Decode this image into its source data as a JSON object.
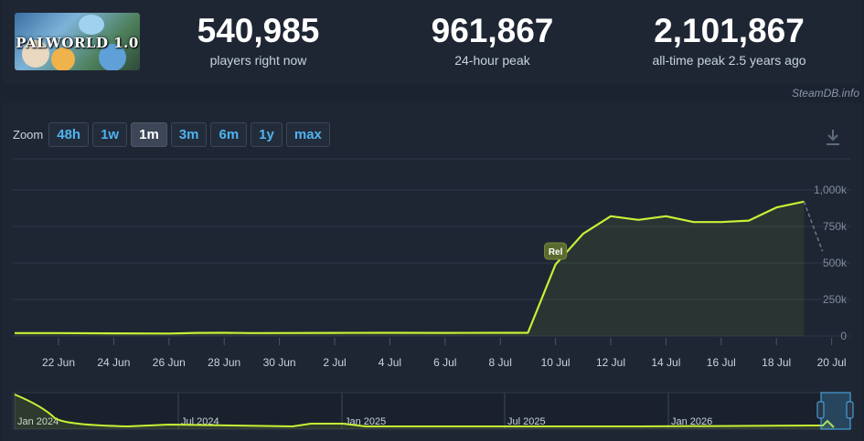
{
  "game": {
    "logo_text": "PALWORLD 1.0"
  },
  "stats": [
    {
      "value": "540,985",
      "label": "players right now"
    },
    {
      "value": "961,867",
      "label": "24-hour peak"
    },
    {
      "value": "2,101,867",
      "label": "all-time peak 2.5 years ago"
    }
  ],
  "watermark": "SteamDB.info",
  "zoom": {
    "label": "Zoom",
    "options": [
      "48h",
      "1w",
      "1m",
      "3m",
      "6m",
      "1y",
      "max"
    ],
    "active": "1m"
  },
  "colors": {
    "series": "#c6f136",
    "accent": "#4fb3f0",
    "flag": "#5a6a30"
  },
  "chart_data": {
    "type": "line",
    "x_unit": "day (June–July)",
    "x_ticks": [
      "22 Jun",
      "24 Jun",
      "26 Jun",
      "28 Jun",
      "30 Jun",
      "2 Jul",
      "4 Jul",
      "6 Jul",
      "8 Jul",
      "10 Jul",
      "12 Jul",
      "14 Jul",
      "16 Jul",
      "18 Jul",
      "20 Jul"
    ],
    "y_ticks": [
      "0",
      "250k",
      "500k",
      "750k",
      "1,000k"
    ],
    "ylim": [
      0,
      1000000
    ],
    "series": [
      {
        "values": [
          [
            "21 Jun",
            20000
          ],
          [
            "22 Jun",
            20000
          ],
          [
            "24 Jun",
            18000
          ],
          [
            "26 Jun",
            17000
          ],
          [
            "27 Jun",
            21000
          ],
          [
            "28 Jun",
            22000
          ],
          [
            "29 Jun",
            20000
          ],
          [
            "2 Jul",
            21000
          ],
          [
            "4 Jul",
            22000
          ],
          [
            "6 Jul",
            21000
          ],
          [
            "8 Jul",
            22000
          ],
          [
            "9 Jul",
            22000
          ],
          [
            "10 Jul",
            490000
          ],
          [
            "11 Jul",
            700000
          ],
          [
            "12 Jul",
            820000
          ],
          [
            "13 Jul",
            795000
          ],
          [
            "14 Jul",
            820000
          ],
          [
            "15 Jul",
            780000
          ],
          [
            "16 Jul",
            780000
          ],
          [
            "17 Jul",
            790000
          ],
          [
            "18 Jul",
            880000
          ],
          [
            "19 Jul",
            920000
          ]
        ],
        "projection": [
          [
            "19 Jul",
            920000
          ],
          [
            "20 Jul",
            580000
          ]
        ]
      }
    ],
    "annotations": [
      {
        "x": "10 Jul",
        "label": "Rel"
      }
    ],
    "grid": true,
    "navigator": {
      "labels": [
        "Jan 2024",
        "Jul 2024",
        "Jan 2025",
        "Jul 2025",
        "Jan 2026"
      ]
    }
  }
}
